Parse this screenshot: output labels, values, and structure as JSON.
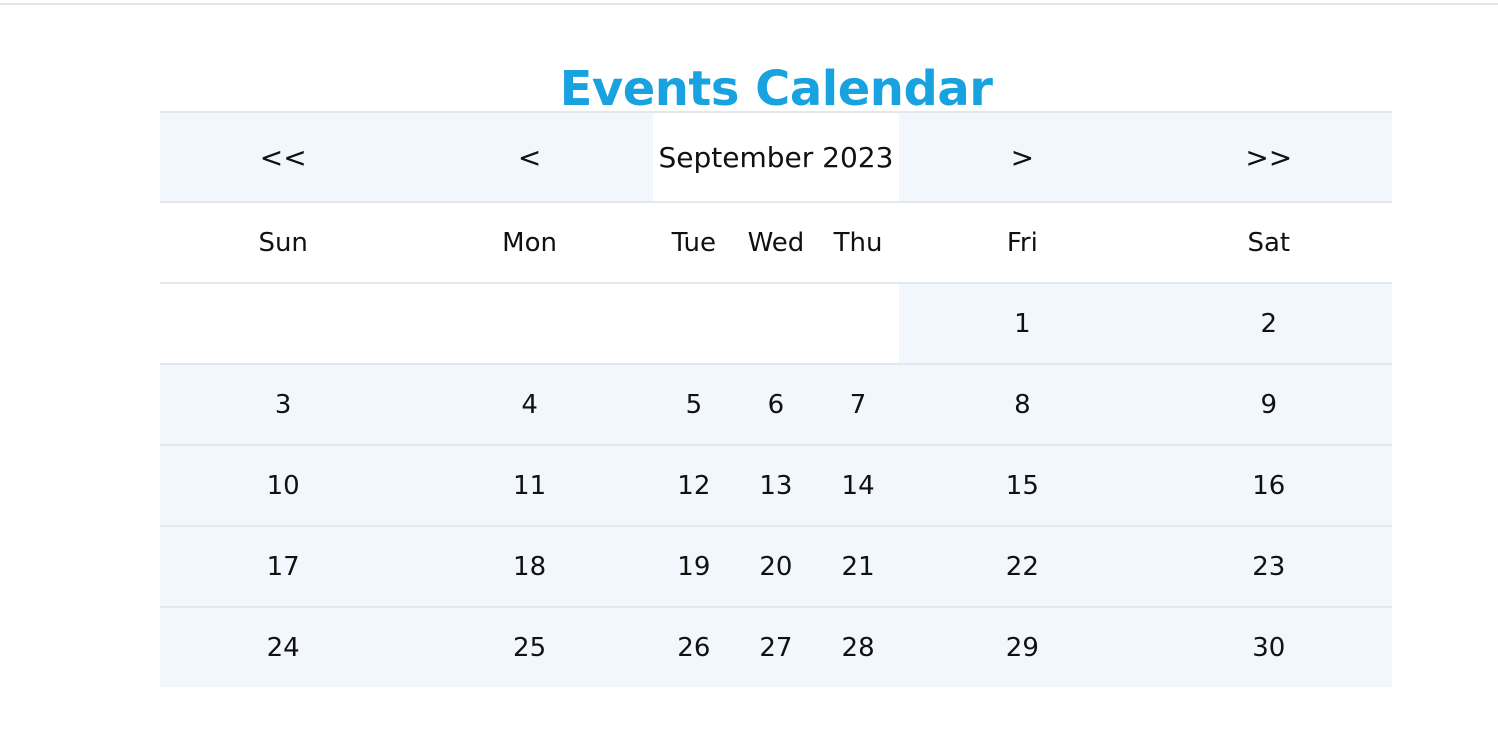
{
  "page": {
    "title": "Events Calendar"
  },
  "calendar": {
    "month_label": "September 2023",
    "nav": {
      "prev_year": "<<",
      "prev_month": "<",
      "next_month": ">",
      "next_year": ">>"
    },
    "weekdays": [
      "Sun",
      "Mon",
      "Tue",
      "Wed",
      "Thu",
      "Fri",
      "Sat"
    ],
    "weeks": [
      [
        "",
        "",
        "",
        "",
        "",
        "1",
        "2"
      ],
      [
        "3",
        "4",
        "5",
        "6",
        "7",
        "8",
        "9"
      ],
      [
        "10",
        "11",
        "12",
        "13",
        "14",
        "15",
        "16"
      ],
      [
        "17",
        "18",
        "19",
        "20",
        "21",
        "22",
        "23"
      ],
      [
        "24",
        "25",
        "26",
        "27",
        "28",
        "29",
        "30"
      ]
    ]
  },
  "colors": {
    "title": "#18a2e0",
    "cell_fill": "#f1f7fd",
    "border": "#e3e8ee"
  }
}
